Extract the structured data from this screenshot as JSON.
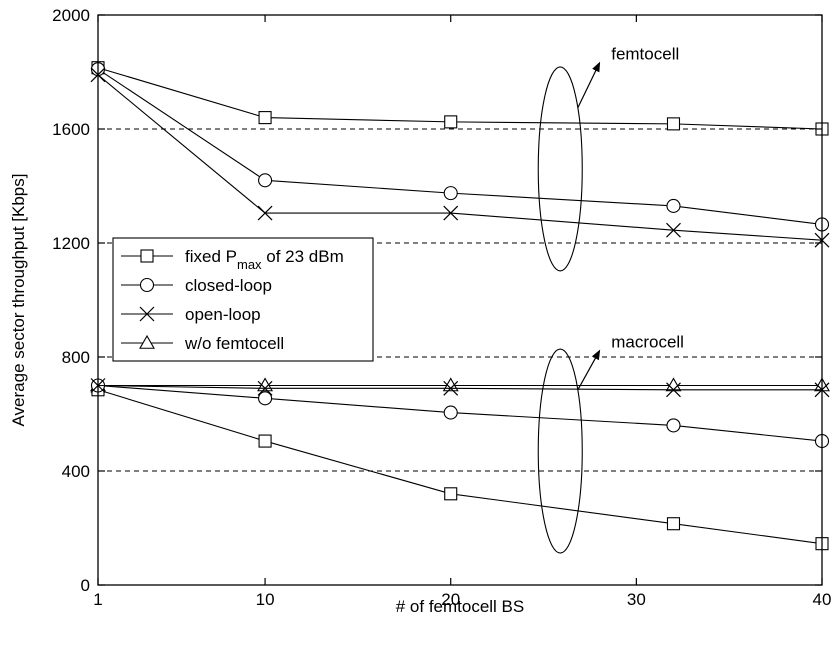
{
  "chart_data": {
    "type": "line",
    "xlabel": "# of femtocell BS",
    "ylabel": "Average sector throughput [Kbps]",
    "xlim": [
      1,
      40
    ],
    "ylim": [
      0,
      2000
    ],
    "xticks": [
      1,
      10,
      20,
      30,
      40
    ],
    "yticks": [
      0,
      400,
      800,
      1200,
      1600,
      2000
    ],
    "grid": "dashed horizontal at 400, 800, 1200, 1600",
    "legend_position": "middle-left",
    "series": [
      {
        "name": "fixed P",
        "name_sub": "max",
        "name_suffix": " of 23 dBm",
        "marker": "square",
        "group": "femtocell",
        "x": [
          1,
          10,
          20,
          32,
          40
        ],
        "y": [
          1815,
          1640,
          1625,
          1618,
          1600
        ]
      },
      {
        "name": "closed-loop",
        "marker": "circle",
        "group": "femtocell",
        "x": [
          1,
          10,
          20,
          32,
          40
        ],
        "y": [
          1810,
          1420,
          1375,
          1330,
          1265
        ]
      },
      {
        "name": "open-loop",
        "marker": "x",
        "group": "femtocell",
        "x": [
          1,
          10,
          20,
          32,
          40
        ],
        "y": [
          1790,
          1305,
          1305,
          1245,
          1210
        ]
      },
      {
        "name": "w/o femtocell",
        "marker": "triangle",
        "group": "macrocell",
        "x": [
          1,
          10,
          20,
          32,
          40
        ],
        "y": [
          700,
          700,
          700,
          700,
          700
        ]
      },
      {
        "name": "fixed P max of 23 dBm (macrocell)",
        "marker": "square",
        "group": "macrocell",
        "x": [
          1,
          10,
          20,
          32,
          40
        ],
        "y": [
          685,
          505,
          320,
          215,
          145
        ]
      },
      {
        "name": "closed-loop (macrocell)",
        "marker": "circle",
        "group": "macrocell",
        "x": [
          1,
          10,
          20,
          32,
          40
        ],
        "y": [
          700,
          655,
          605,
          560,
          505
        ]
      },
      {
        "name": "open-loop (macrocell)",
        "marker": "x",
        "group": "macrocell",
        "x": [
          1,
          10,
          20,
          32,
          40
        ],
        "y": [
          700,
          690,
          690,
          685,
          685
        ]
      }
    ],
    "annotations": [
      {
        "text": "femtocell",
        "ellipse_center": [
          25.9,
          1460
        ],
        "arrow_to": [
          28.0,
          1830
        ]
      },
      {
        "text": "macrocell",
        "ellipse_center": [
          25.9,
          470
        ],
        "arrow_to": [
          28.0,
          820
        ]
      }
    ],
    "legend_entries": [
      0,
      1,
      2,
      3
    ]
  }
}
